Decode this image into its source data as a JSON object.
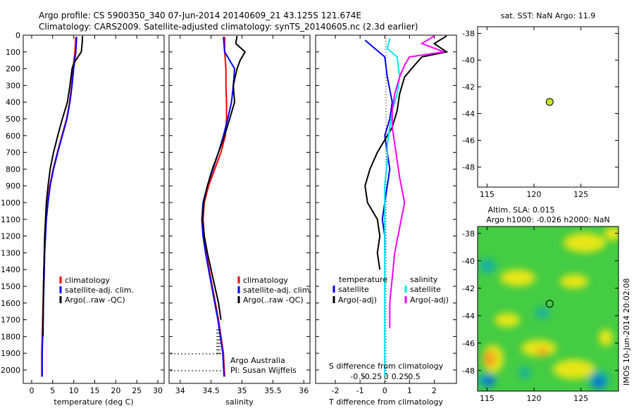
{
  "header": {
    "line1": "Argo profile: CS 5900350_340 07-Jun-2014 20140609_21 43.125S 121.674E",
    "line2": "Climatology: CARS2009. Satellite-adjusted climatology: synTS_20140605.nc (2.3d earlier)"
  },
  "side_text": "IMOS 10-Jun-2014 20:02:08",
  "chart_data": [
    {
      "id": "temperature",
      "type": "line",
      "xlabel": "temperature (deg C)",
      "ylabel": "",
      "xlim": [
        -2,
        31.5
      ],
      "ylim": [
        2080,
        0
      ],
      "xticks": [
        0,
        5,
        10,
        15,
        20,
        25,
        30
      ],
      "xtick_labels": [
        "0",
        "5",
        "10",
        "15",
        "20",
        "25",
        "30"
      ],
      "yticks": [
        0,
        100,
        200,
        300,
        400,
        500,
        600,
        700,
        800,
        900,
        1000,
        1100,
        1200,
        1300,
        1400,
        1500,
        1600,
        1700,
        1800,
        1900,
        2000
      ],
      "ytick_labels": [
        "0",
        "100",
        "200",
        "300",
        "400",
        "500",
        "600",
        "700",
        "800",
        "900",
        "1000",
        "1100",
        "1200",
        "1300",
        "1400",
        "1500",
        "1600",
        "1700",
        "1800",
        "1900",
        "2000"
      ],
      "legend": {
        "placement": "bottom-right",
        "entries": [
          "climatology",
          "satellite-adj. clim.",
          "Argo(..raw -QC)"
        ]
      },
      "series": [
        {
          "name": "climatology",
          "color": "#ff0000",
          "x": [
            10.5,
            10.3,
            9.8,
            9.5,
            9.0,
            8.3,
            7.2,
            6.1,
            5.1,
            4.3,
            3.8,
            3.4,
            3.2,
            3.0,
            2.9,
            2.8,
            2.7,
            2.6,
            2.5,
            2.4,
            2.4
          ],
          "y": [
            10,
            100,
            200,
            300,
            400,
            500,
            600,
            700,
            800,
            900,
            1000,
            1100,
            1200,
            1300,
            1400,
            1500,
            1600,
            1700,
            1800,
            1900,
            2040
          ]
        },
        {
          "name": "satellite-adj. clim.",
          "color": "#0000ff",
          "x": [
            10.7,
            10.5,
            10.0,
            9.6,
            9.1,
            8.4,
            7.3,
            6.2,
            5.2,
            4.4,
            3.9,
            3.5,
            3.3,
            3.1,
            3.0,
            2.9,
            2.8,
            2.7,
            2.6,
            2.5,
            2.5
          ],
          "y": [
            10,
            100,
            200,
            300,
            400,
            500,
            600,
            700,
            800,
            900,
            1000,
            1100,
            1200,
            1300,
            1400,
            1500,
            1600,
            1700,
            1800,
            1900,
            2040
          ]
        },
        {
          "name": "Argo(..raw -QC)",
          "color": "#000000",
          "x": [
            12.1,
            12.0,
            11.8,
            11.0,
            10.0,
            9.6,
            9.1,
            8.5,
            7.3,
            6.2,
            5.2,
            4.4,
            3.9,
            3.5,
            3.3,
            3.1,
            3.0,
            2.9,
            2.8,
            2.7
          ],
          "y": [
            5,
            50,
            100,
            130,
            170,
            200,
            300,
            400,
            500,
            600,
            700,
            800,
            900,
            1000,
            1100,
            1200,
            1300,
            1400,
            1500,
            1800
          ]
        }
      ]
    },
    {
      "id": "salinity",
      "type": "line",
      "xlabel": "salinity",
      "xlim": [
        33.82,
        36.1
      ],
      "ylim": [
        2080,
        0
      ],
      "xticks": [
        34,
        34.5,
        35,
        35.5,
        36
      ],
      "xtick_labels": [
        "34",
        "34.5",
        "35",
        "35.5",
        "36"
      ],
      "legend": {
        "placement": "bottom-right",
        "entries": [
          "climatology",
          "satellite-adj. clim.",
          "Argo(..raw -QC)"
        ]
      },
      "annotations": [
        "Argo Australia",
        "PI: Susan Wijffels"
      ],
      "series": [
        {
          "name": "climatology",
          "color": "#ff0000",
          "x": [
            34.72,
            34.72,
            34.74,
            34.74,
            34.75,
            34.75,
            34.73,
            34.66,
            34.56,
            34.46,
            34.39,
            34.37,
            34.39,
            34.42,
            34.47,
            34.52,
            34.57,
            34.62,
            34.66,
            34.7,
            34.72
          ],
          "y": [
            10,
            100,
            200,
            300,
            400,
            500,
            600,
            700,
            800,
            900,
            1000,
            1100,
            1200,
            1300,
            1400,
            1500,
            1600,
            1700,
            1800,
            1900,
            2040
          ]
        },
        {
          "name": "satellite-adj. clim.",
          "color": "#0000ff",
          "x": [
            34.7,
            34.72,
            34.88,
            34.86,
            34.83,
            34.77,
            34.7,
            34.62,
            34.53,
            34.44,
            34.37,
            34.35,
            34.37,
            34.41,
            34.46,
            34.51,
            34.56,
            34.61,
            34.65,
            34.69,
            34.71
          ],
          "y": [
            10,
            100,
            200,
            300,
            400,
            500,
            600,
            700,
            800,
            900,
            1000,
            1100,
            1200,
            1300,
            1400,
            1500,
            1600,
            1700,
            1800,
            1900,
            2040
          ]
        },
        {
          "name": "Argo(..raw -QC)",
          "color": "#000000",
          "x": [
            34.92,
            34.9,
            35.05,
            34.97,
            34.92,
            34.86,
            34.88,
            34.8,
            34.72,
            34.62,
            34.52,
            34.44,
            34.38,
            34.36,
            34.39,
            34.44,
            34.5,
            34.56,
            34.62,
            34.66
          ],
          "y": [
            5,
            50,
            100,
            150,
            200,
            300,
            400,
            500,
            600,
            700,
            800,
            900,
            1000,
            1100,
            1200,
            1300,
            1400,
            1500,
            1600,
            1700
          ]
        }
      ]
    },
    {
      "id": "difference",
      "type": "line",
      "xlabel": "T difference from climatology",
      "top_axis_label": "S difference from climatology",
      "xlim": [
        -2.8,
        2.9
      ],
      "ylim": [
        2080,
        0
      ],
      "xticks": [
        -2,
        -1,
        0,
        1,
        2
      ],
      "xtick_labels": [
        "-2",
        "-1",
        "0",
        "1",
        "2"
      ],
      "sticks": [
        -0.5,
        -0.25,
        0,
        0.25,
        0.5
      ],
      "stick_labels": [
        "-0.5",
        "-0.25",
        "0",
        "0.25",
        "0.5"
      ],
      "legend": {
        "placement": "bottom",
        "temperature_title": "temperature",
        "salinity_title": "salinity",
        "entries": [
          "satellite",
          "Argo(-adj)",
          "satellite",
          "Argo(-adj)"
        ]
      },
      "series": [
        {
          "name": "temperature satellite",
          "color": "#0000ff",
          "x": [
            -0.8,
            -0.4,
            0.0,
            0.1,
            0.3,
            0.2,
            0.0,
            0.1,
            0.2,
            0.1,
            0.0,
            -0.1,
            0.0,
            0.0
          ],
          "y": [
            30,
            80,
            130,
            250,
            400,
            500,
            600,
            700,
            800,
            900,
            1000,
            1100,
            1200,
            1300
          ]
        },
        {
          "name": "temperature Argo(-adj)",
          "color": "#000000",
          "x": [
            2.5,
            2.0,
            2.5,
            1.5,
            1.2,
            0.8,
            0.6,
            0.5,
            0.3,
            0.1,
            -0.1,
            -0.3,
            -0.6,
            -0.8,
            -0.7,
            -0.3,
            -0.2,
            -0.3,
            -0.2
          ],
          "y": [
            5,
            50,
            100,
            130,
            180,
            250,
            350,
            450,
            550,
            600,
            650,
            700,
            800,
            900,
            1000,
            1100,
            1200,
            1300,
            1400
          ]
        },
        {
          "name": "salinity satellite",
          "color": "#00e5ee",
          "x": [
            0.2,
            0.1,
            0.5,
            0.6,
            0.5,
            0.3,
            0.2,
            0.1,
            0.1,
            0.0,
            0.0,
            0.0,
            0.0,
            0.0,
            0.0,
            0.0,
            0.0
          ],
          "y": [
            20,
            80,
            130,
            250,
            350,
            450,
            550,
            650,
            750,
            900,
            1100,
            1300,
            1500,
            1700,
            1900,
            2000,
            2040
          ]
        },
        {
          "name": "salinity Argo(-adj)",
          "color": "#ff00ff",
          "x": [
            2.0,
            1.5,
            2.4,
            1.0,
            0.8,
            0.6,
            0.4,
            0.3,
            0.3,
            0.4,
            0.5,
            0.6,
            0.8,
            0.6,
            0.4,
            0.3,
            0.2,
            0.2
          ],
          "y": [
            5,
            50,
            100,
            130,
            180,
            250,
            350,
            450,
            550,
            650,
            750,
            850,
            1000,
            1150,
            1300,
            1450,
            1600,
            1750
          ]
        }
      ]
    },
    {
      "id": "sst_map",
      "type": "scatter",
      "title": "sat. SST: NaN  Argo: 11.9",
      "xlim": [
        114,
        129
      ],
      "ylim": [
        -49.5,
        -37.5
      ],
      "xticks": [
        115,
        120,
        125
      ],
      "xtick_labels": [
        "115",
        "120",
        "125"
      ],
      "yticks": [
        -38,
        -40,
        -42,
        -44,
        -46,
        -48
      ],
      "ytick_labels": [
        "-38",
        "-40",
        "-42",
        "-44",
        "-46",
        "-48"
      ],
      "points": [
        {
          "x": 121.674,
          "y": -43.125,
          "color": "#c8e619"
        }
      ]
    },
    {
      "id": "sla_map",
      "type": "heatmap",
      "title_line1": "Altim. SLA: 0.015",
      "title_line2": "Argo h1000: -0.026 h2000: NaN",
      "xlim": [
        114,
        129
      ],
      "ylim": [
        -49.5,
        -37.5
      ],
      "xticks": [
        115,
        120,
        125
      ],
      "xtick_labels": [
        "115",
        "120",
        "125"
      ],
      "yticks": [
        -38,
        -40,
        -42,
        -44,
        -46,
        -48
      ],
      "ytick_labels": [
        "-38",
        "-40",
        "-42",
        "-44",
        "-46",
        "-48"
      ],
      "points": [
        {
          "x": 121.674,
          "y": -43.125
        }
      ],
      "colors": {
        "base": "#44cc44",
        "high": "#e6e619",
        "higher": "#f5a020",
        "low": "#18b0a0",
        "lowest": "#1070d0"
      }
    }
  ]
}
